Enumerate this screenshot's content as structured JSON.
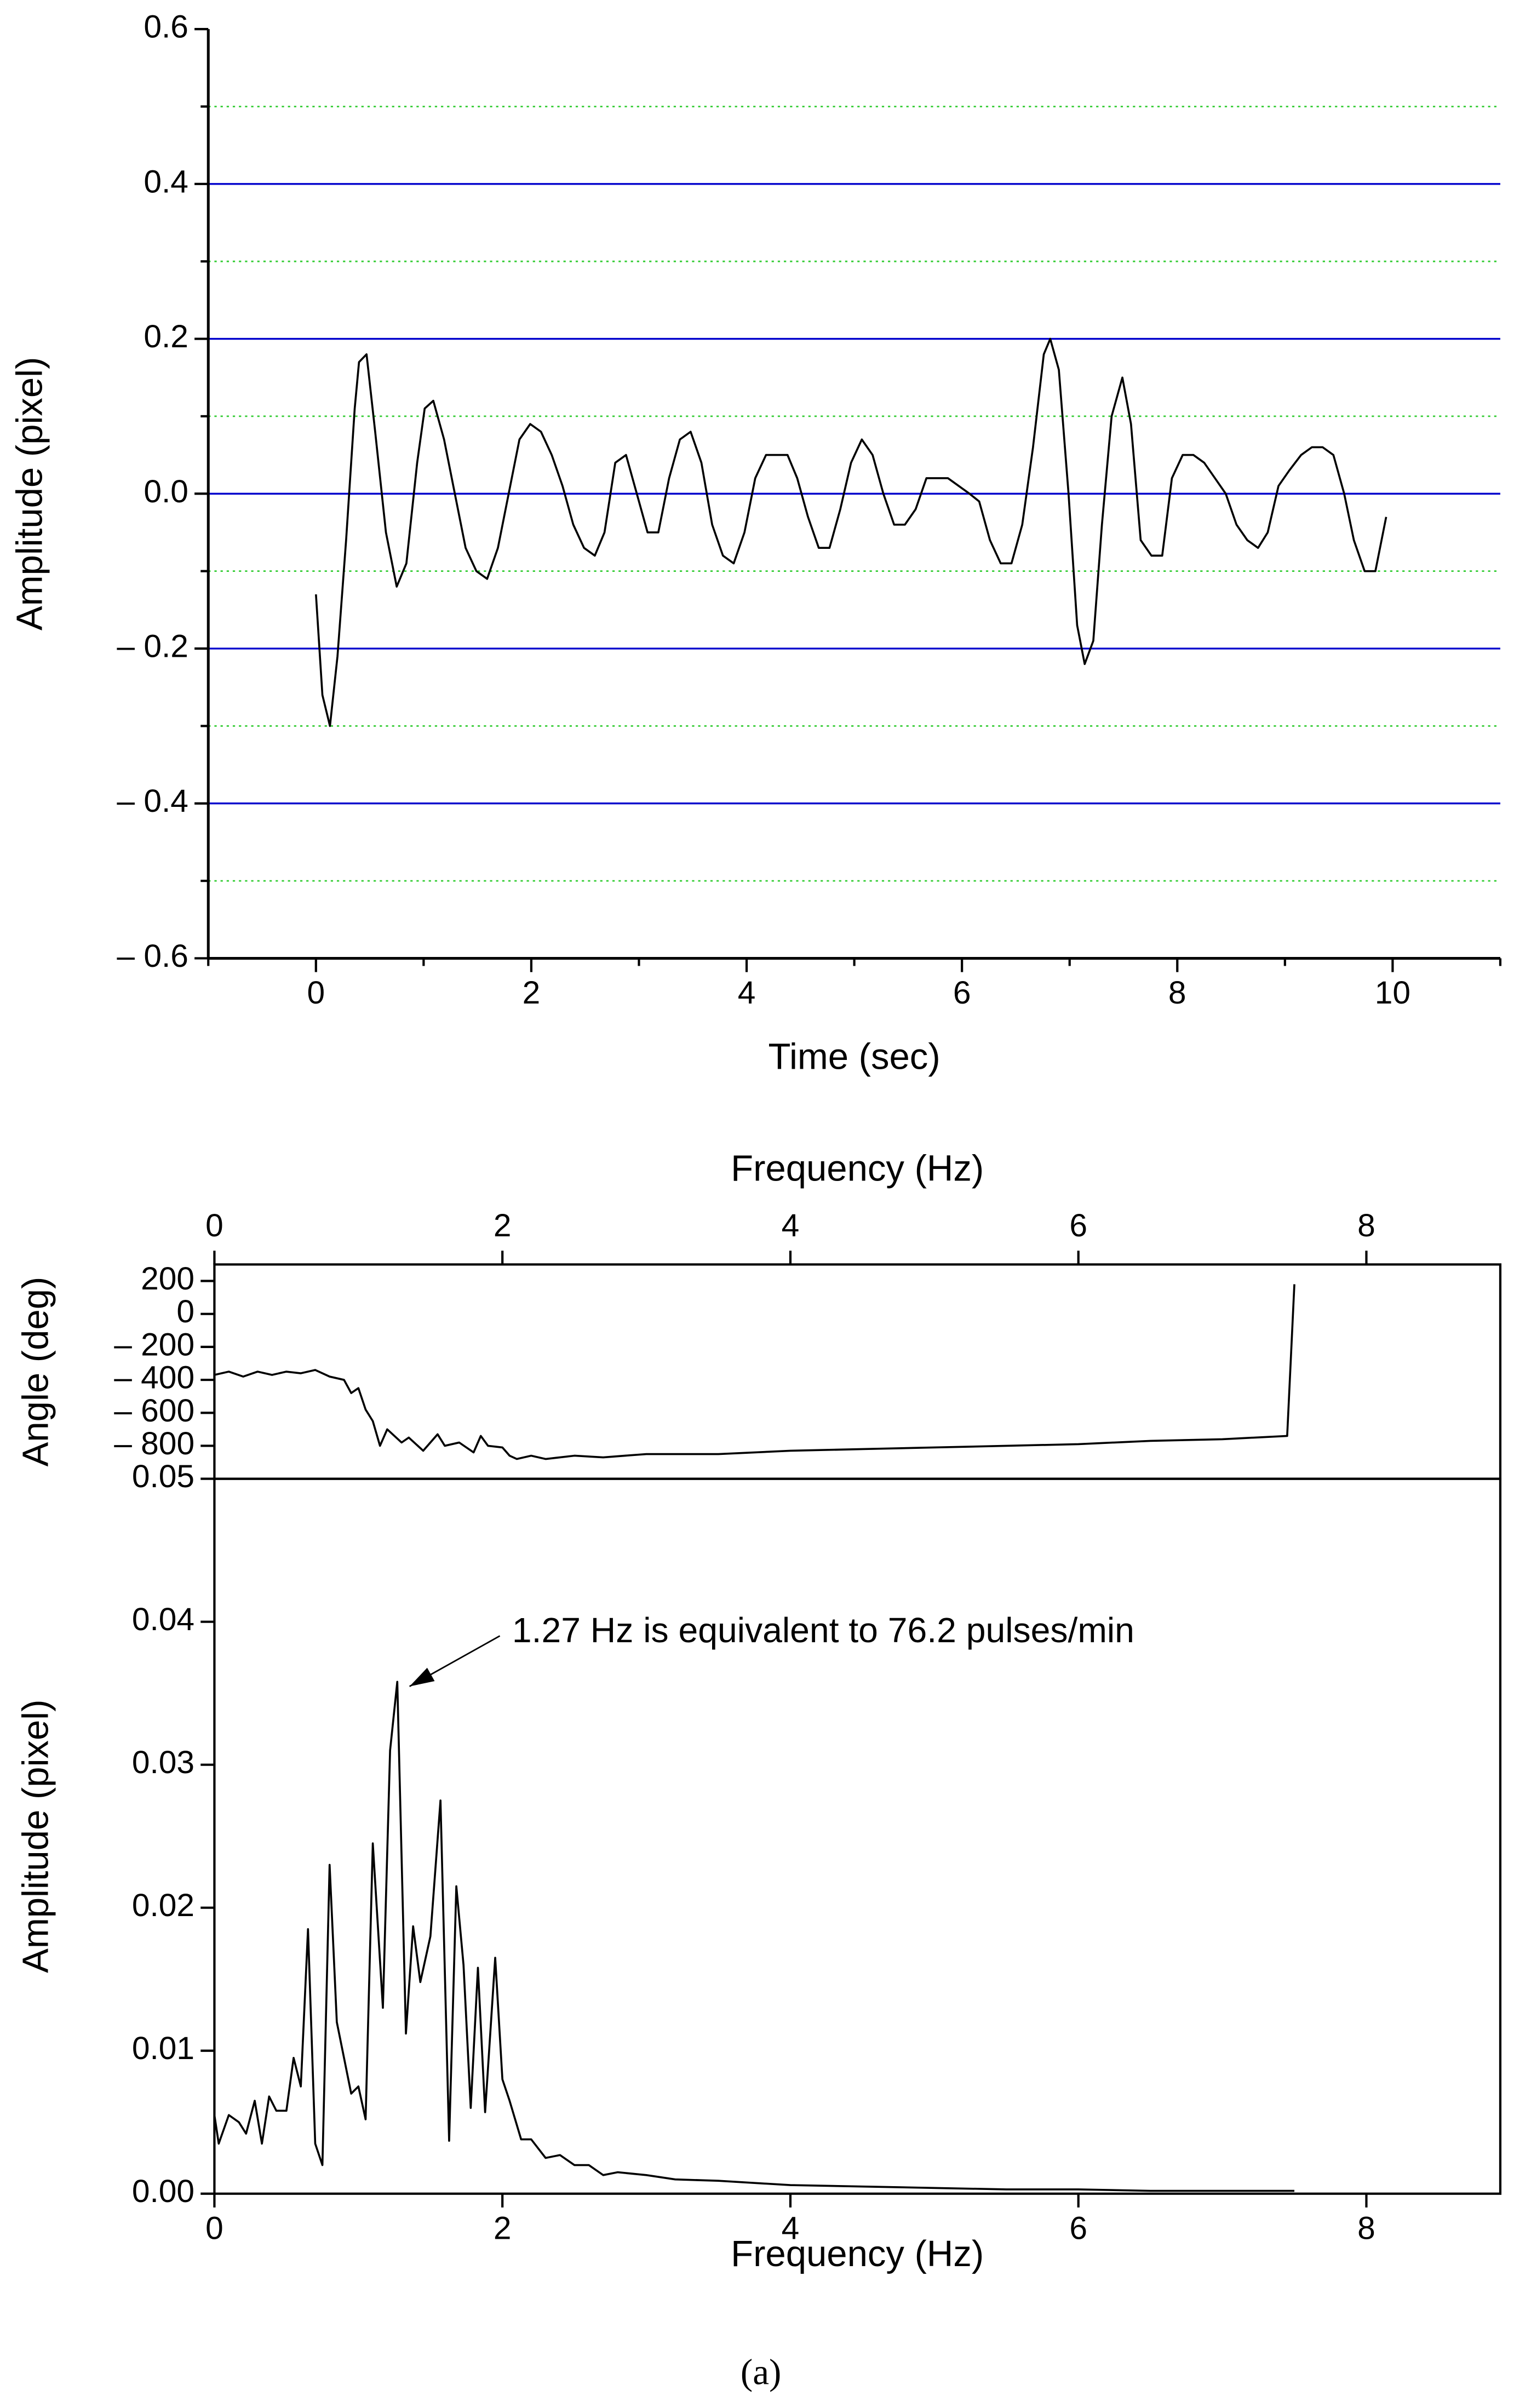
{
  "chart_data": [
    {
      "type": "line",
      "xlabel": "Time (sec)",
      "ylabel": "Amplitude (pixel)",
      "color": "#000000",
      "xlim": [
        -1,
        11
      ],
      "xticks": [
        0,
        2,
        4,
        6,
        8,
        10
      ],
      "minor_xticks": [
        -1,
        1,
        3,
        5,
        7,
        9,
        11
      ],
      "ylim": [
        -0.6,
        0.6
      ],
      "yticks": [
        {
          "value": -0.6,
          "label": "– 0.6"
        },
        {
          "value": -0.4,
          "label": "– 0.4"
        },
        {
          "value": -0.2,
          "label": "– 0.2"
        },
        {
          "value": 0,
          "label": "0.0"
        },
        0.2,
        0.4,
        0.6
      ],
      "grid": true,
      "grid_color": "#0000cc",
      "minor_grid": [
        -0.5,
        -0.3,
        -0.1,
        0.1,
        0.3,
        0.5
      ],
      "minor_grid_color": "#33cc33",
      "xaxis_position": "bottom",
      "frame": false,
      "x": [
        0,
        0.06,
        0.13,
        0.2,
        0.28,
        0.36,
        0.4,
        0.47,
        0.55,
        0.65,
        0.75,
        0.84,
        0.94,
        1.01,
        1.09,
        1.19,
        1.29,
        1.39,
        1.49,
        1.59,
        1.69,
        1.79,
        1.89,
        1.99,
        2.09,
        2.19,
        2.29,
        2.39,
        2.49,
        2.59,
        2.68,
        2.78,
        2.88,
        2.98,
        3.08,
        3.18,
        3.28,
        3.38,
        3.48,
        3.58,
        3.68,
        3.78,
        3.88,
        3.98,
        4.08,
        4.18,
        4.28,
        4.38,
        4.47,
        4.57,
        4.67,
        4.77,
        4.87,
        4.97,
        5.07,
        5.17,
        5.27,
        5.37,
        5.47,
        5.57,
        5.67,
        5.77,
        5.87,
        5.97,
        6.07,
        6.16,
        6.26,
        6.36,
        6.46,
        6.56,
        6.66,
        6.76,
        6.82,
        6.9,
        6.99,
        7.07,
        7.14,
        7.22,
        7.3,
        7.39,
        7.49,
        7.57,
        7.66,
        7.76,
        7.86,
        7.95,
        8.05,
        8.15,
        8.25,
        8.35,
        8.45,
        8.55,
        8.65,
        8.75,
        8.84,
        8.94,
        9.04,
        9.15,
        9.25,
        9.35,
        9.45,
        9.55,
        9.64,
        9.74,
        9.84,
        9.94
      ],
      "values": [
        -0.13,
        -0.26,
        -0.3,
        -0.21,
        -0.06,
        0.11,
        0.17,
        0.18,
        0.08,
        -0.05,
        -0.12,
        -0.09,
        0.04,
        0.11,
        0.12,
        0.07,
        0.0,
        -0.07,
        -0.1,
        -0.11,
        -0.07,
        0.0,
        0.07,
        0.09,
        0.08,
        0.05,
        0.01,
        -0.04,
        -0.07,
        -0.08,
        -0.05,
        0.04,
        0.05,
        0.0,
        -0.05,
        -0.05,
        0.02,
        0.07,
        0.08,
        0.04,
        -0.04,
        -0.08,
        -0.09,
        -0.05,
        0.02,
        0.05,
        0.05,
        0.05,
        0.02,
        -0.03,
        -0.07,
        -0.07,
        -0.02,
        0.04,
        0.07,
        0.05,
        0.0,
        -0.04,
        -0.04,
        -0.02,
        0.02,
        0.02,
        0.02,
        0.01,
        0.0,
        -0.01,
        -0.06,
        -0.09,
        -0.09,
        -0.04,
        0.06,
        0.18,
        0.2,
        0.16,
        0.0,
        -0.17,
        -0.22,
        -0.19,
        -0.04,
        0.1,
        0.15,
        0.09,
        -0.06,
        -0.08,
        -0.08,
        0.02,
        0.05,
        0.05,
        0.04,
        0.02,
        0.0,
        -0.04,
        -0.06,
        -0.07,
        -0.05,
        0.01,
        0.03,
        0.05,
        0.06,
        0.06,
        0.05,
        0.0,
        -0.06,
        -0.1,
        -0.1,
        -0.03
      ]
    },
    {
      "type": "line",
      "xlabel": "Frequency (Hz)",
      "ylabel": "Angle (deg)",
      "color": "#000000",
      "xlim": [
        0,
        8.93
      ],
      "xticks": [
        0,
        2,
        4,
        6,
        8
      ],
      "ylim": [
        -1000,
        300
      ],
      "yticks": [
        {
          "value": -800,
          "label": "– 800"
        },
        {
          "value": -600,
          "label": "– 600"
        },
        {
          "value": -400,
          "label": "– 400"
        },
        {
          "value": -200,
          "label": "– 200"
        },
        0,
        200
      ],
      "grid": false,
      "xaxis_position": "top",
      "frame": true,
      "x": [
        0,
        0.1,
        0.2,
        0.3,
        0.4,
        0.5,
        0.6,
        0.7,
        0.8,
        0.9,
        0.95,
        1.0,
        1.05,
        1.1,
        1.15,
        1.2,
        1.3,
        1.35,
        1.45,
        1.55,
        1.6,
        1.7,
        1.8,
        1.85,
        1.9,
        2.0,
        2.05,
        2.1,
        2.2,
        2.3,
        2.5,
        2.7,
        3.0,
        3.5,
        4.0,
        4.5,
        5.0,
        5.5,
        6.0,
        6.5,
        7.0,
        7.45,
        7.5
      ],
      "values": [
        -370,
        -350,
        -380,
        -350,
        -370,
        -350,
        -360,
        -340,
        -380,
        -400,
        -480,
        -450,
        -580,
        -650,
        -800,
        -700,
        -780,
        -750,
        -830,
        -730,
        -800,
        -780,
        -840,
        -740,
        -800,
        -810,
        -860,
        -880,
        -860,
        -880,
        -860,
        -870,
        -850,
        -850,
        -830,
        -820,
        -810,
        -800,
        -790,
        -770,
        -760,
        -740,
        180
      ]
    },
    {
      "type": "line",
      "xlabel": "Frequency (Hz)",
      "ylabel": "Amplitude (pixel)",
      "color": "#000000",
      "xlim": [
        0,
        8.93
      ],
      "xticks": [
        0,
        2,
        4,
        6,
        8
      ],
      "ylim": [
        0,
        0.05
      ],
      "yticks": [
        {
          "value": 0,
          "label": "0.00"
        },
        0.01,
        0.02,
        0.03,
        0.04,
        0.05
      ],
      "grid": false,
      "xaxis_position": "bottom",
      "frame": true,
      "annotations": [
        {
          "text": "1.27 Hz is equivalent to 76.2 pulses/min",
          "x": 1.27,
          "y": 0.0358
        }
      ],
      "x": [
        0,
        0.03,
        0.1,
        0.17,
        0.22,
        0.28,
        0.33,
        0.38,
        0.43,
        0.5,
        0.55,
        0.6,
        0.65,
        0.7,
        0.75,
        0.8,
        0.85,
        0.9,
        0.95,
        1.0,
        1.05,
        1.1,
        1.17,
        1.22,
        1.27,
        1.33,
        1.38,
        1.43,
        1.5,
        1.57,
        1.63,
        1.68,
        1.73,
        1.78,
        1.83,
        1.88,
        1.95,
        2.0,
        2.05,
        2.13,
        2.2,
        2.3,
        2.4,
        2.5,
        2.6,
        2.7,
        2.8,
        3.0,
        3.2,
        3.5,
        4.0,
        4.5,
        5.0,
        5.5,
        6.0,
        6.5,
        7.0,
        7.5
      ],
      "values": [
        0.0055,
        0.0035,
        0.0055,
        0.005,
        0.0042,
        0.0065,
        0.0035,
        0.0068,
        0.0058,
        0.0058,
        0.0095,
        0.0075,
        0.0185,
        0.0035,
        0.002,
        0.023,
        0.012,
        0.0095,
        0.007,
        0.0075,
        0.0052,
        0.0245,
        0.013,
        0.031,
        0.0358,
        0.0112,
        0.0187,
        0.0148,
        0.018,
        0.0275,
        0.0037,
        0.0215,
        0.016,
        0.006,
        0.0158,
        0.0057,
        0.0165,
        0.008,
        0.0065,
        0.0038,
        0.0038,
        0.0025,
        0.0027,
        0.002,
        0.002,
        0.0013,
        0.0015,
        0.0013,
        0.001,
        0.0009,
        0.0006,
        0.0005,
        0.0004,
        0.0003,
        0.0003,
        0.0002,
        0.0002,
        0.0002
      ]
    }
  ],
  "caption": "(a)"
}
